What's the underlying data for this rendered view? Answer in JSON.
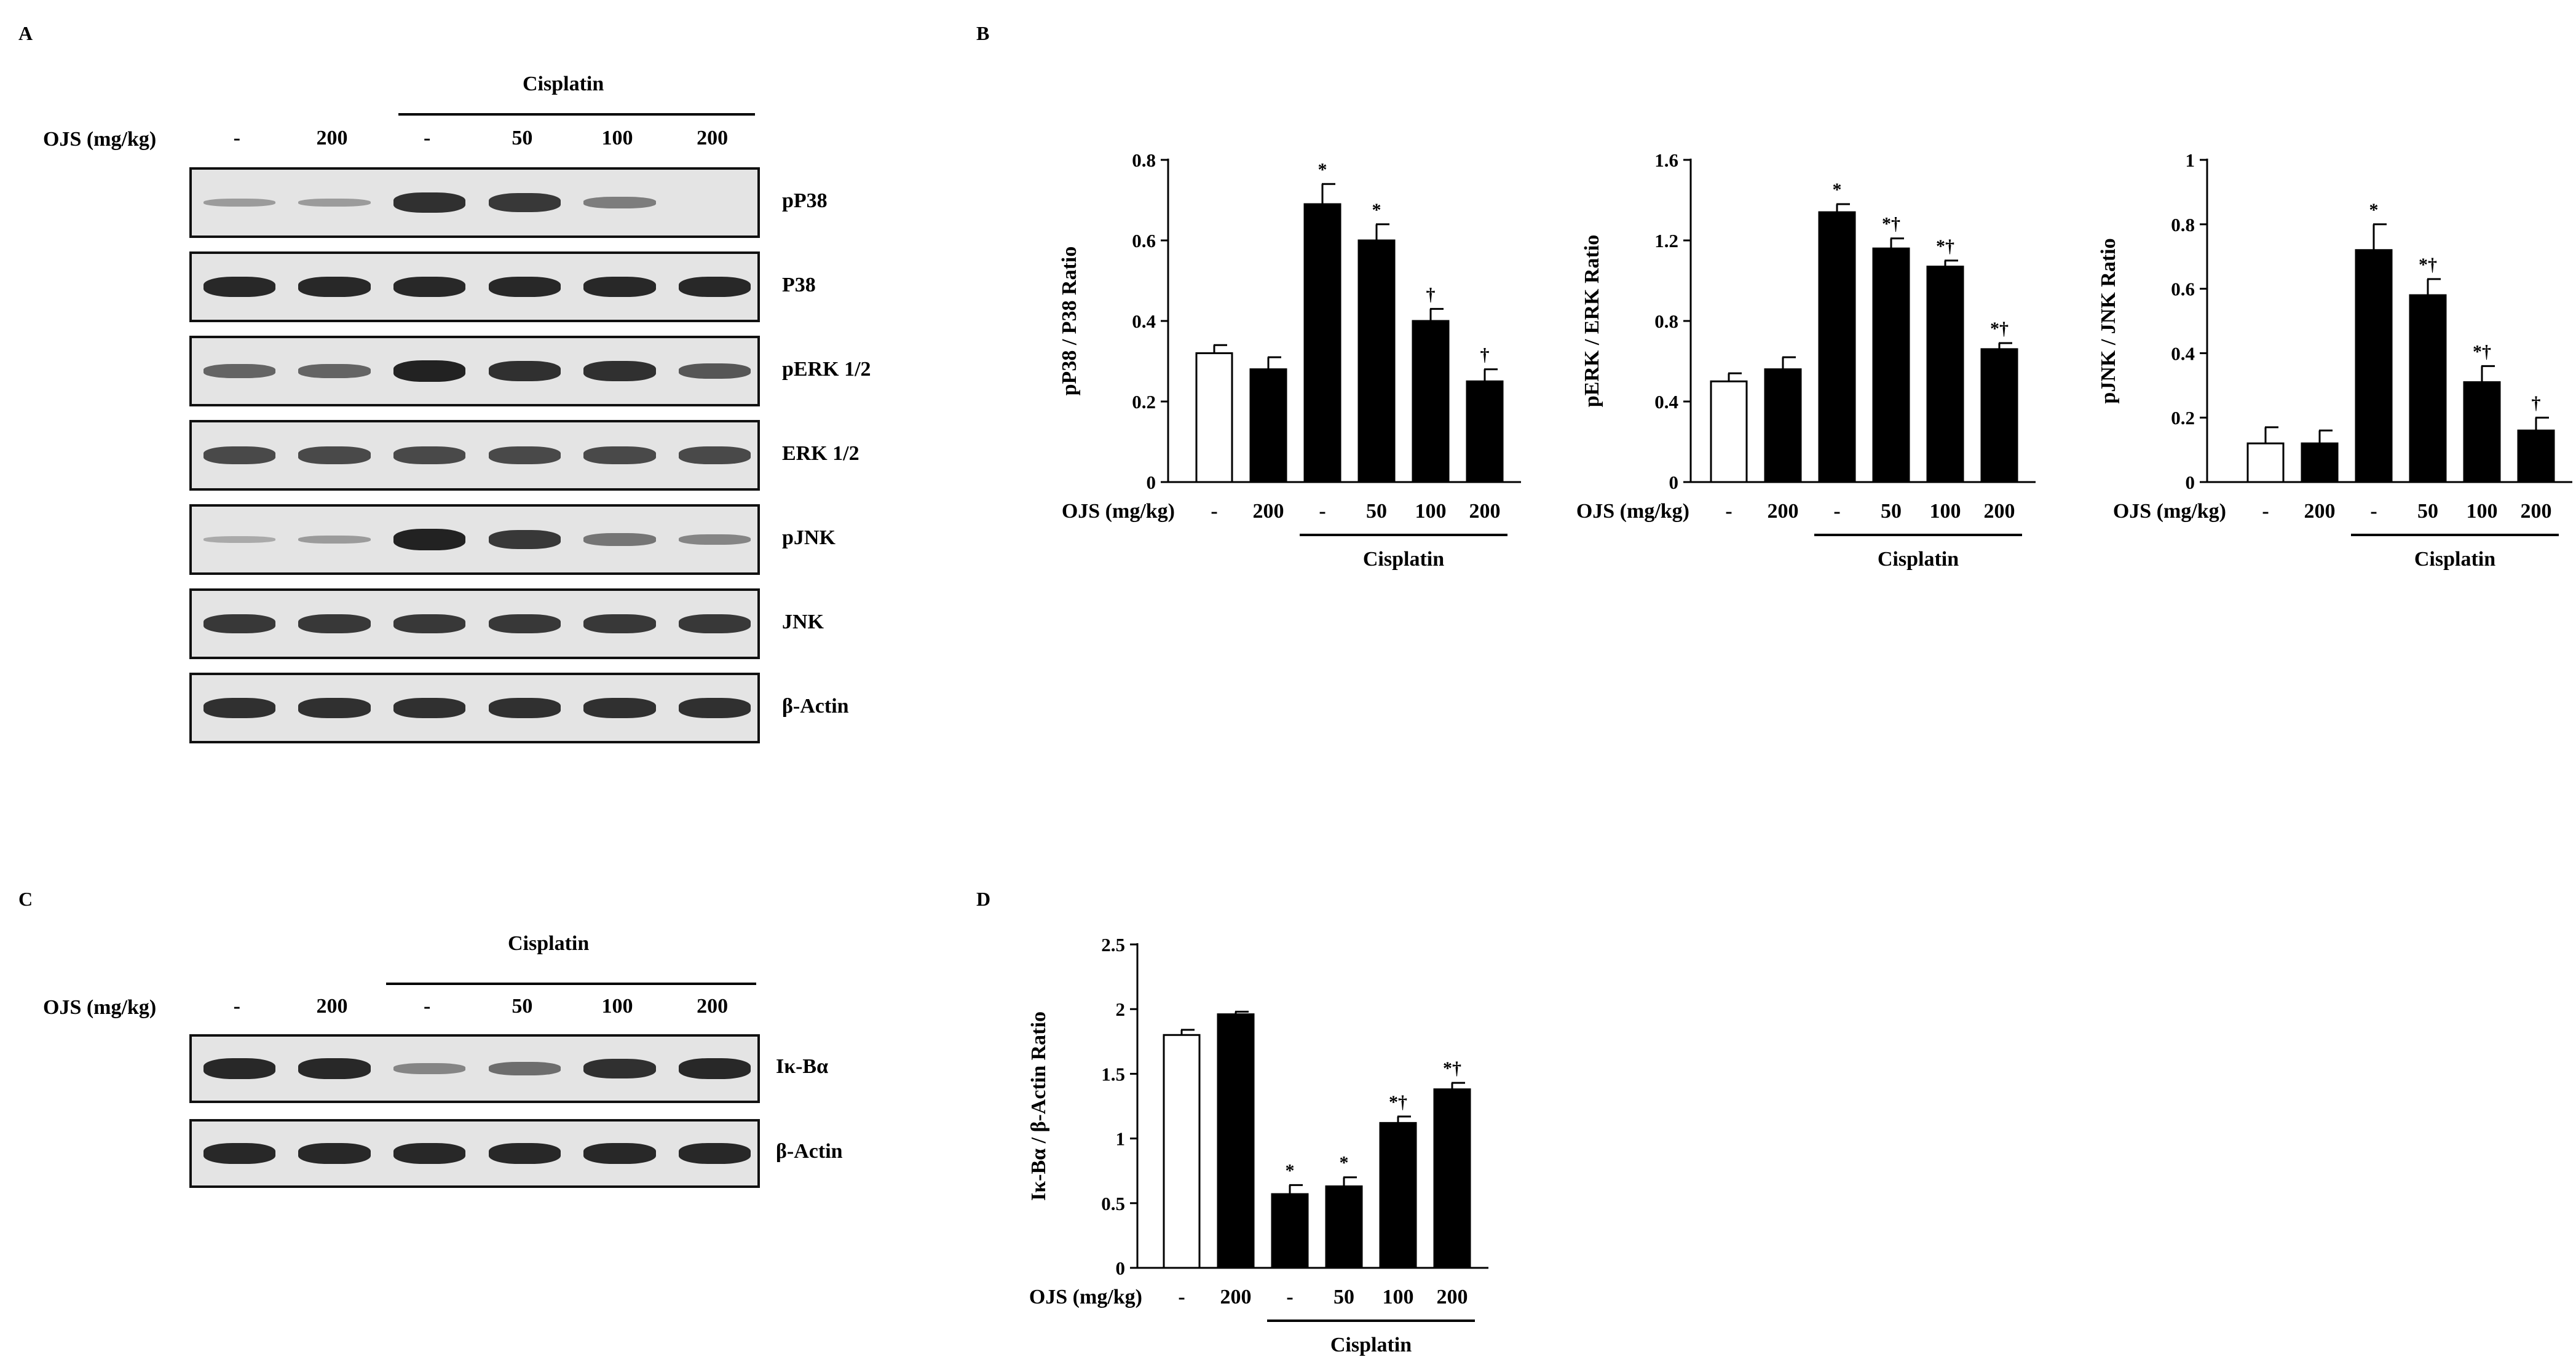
{
  "panels": {
    "a": "A",
    "b": "B",
    "c": "C",
    "d": "D"
  },
  "blot_a": {
    "treatment_label": "Cisplatin",
    "ojs_label": "OJS (mg/kg)",
    "lanes": [
      "-",
      "200",
      "-",
      "50",
      "100",
      "200"
    ],
    "rows": [
      {
        "label": "pP38",
        "intensity": [
          0.15,
          0.15,
          0.85,
          0.8,
          0.35,
          0.0
        ]
      },
      {
        "label": "P38",
        "intensity": [
          0.9,
          0.9,
          0.9,
          0.9,
          0.9,
          0.9
        ]
      },
      {
        "label": "pERK 1/2",
        "intensity": [
          0.5,
          0.5,
          0.95,
          0.85,
          0.85,
          0.6
        ]
      },
      {
        "label": "ERK 1/2",
        "intensity": [
          0.7,
          0.7,
          0.7,
          0.7,
          0.7,
          0.7
        ]
      },
      {
        "label": "pJNK",
        "intensity": [
          0.05,
          0.15,
          0.95,
          0.8,
          0.4,
          0.3
        ]
      },
      {
        "label": "JNK",
        "intensity": [
          0.8,
          0.8,
          0.8,
          0.8,
          0.8,
          0.8
        ]
      },
      {
        "label": "β-Actin",
        "intensity": [
          0.85,
          0.85,
          0.85,
          0.85,
          0.85,
          0.85
        ]
      }
    ]
  },
  "blot_c": {
    "treatment_label": "Cisplatin",
    "ojs_label": "OJS (mg/kg)",
    "lanes": [
      "-",
      "200",
      "-",
      "50",
      "100",
      "200"
    ],
    "rows": [
      {
        "label": "Iκ-Bα",
        "intensity": [
          0.9,
          0.9,
          0.3,
          0.45,
          0.85,
          0.9
        ]
      },
      {
        "label": "β-Actin",
        "intensity": [
          0.9,
          0.9,
          0.9,
          0.9,
          0.9,
          0.9
        ]
      }
    ]
  },
  "chart_data": [
    {
      "type": "bar",
      "ylabel": "pP38 / P38 Ratio",
      "xlabel": "OJS (mg/kg)",
      "group_label": "Cisplatin",
      "categories": [
        "-",
        "200",
        "-",
        "50",
        "100",
        "200"
      ],
      "values": [
        0.32,
        0.28,
        0.69,
        0.6,
        0.4,
        0.25
      ],
      "errors": [
        0.02,
        0.03,
        0.05,
        0.04,
        0.03,
        0.03
      ],
      "annotations": [
        "",
        "",
        "*",
        "*",
        "†",
        "†"
      ],
      "bar_colors": [
        "#ffffff",
        "#000000",
        "#000000",
        "#000000",
        "#000000",
        "#000000"
      ],
      "ylim": [
        0,
        0.8
      ],
      "yticks": [
        "0",
        "0.2",
        "0.4",
        "0.6",
        "0.8"
      ]
    },
    {
      "type": "bar",
      "ylabel": "pERK / ERK Ratio",
      "xlabel": "OJS (mg/kg)",
      "group_label": "Cisplatin",
      "categories": [
        "-",
        "200",
        "-",
        "50",
        "100",
        "200"
      ],
      "values": [
        0.5,
        0.56,
        1.34,
        1.16,
        1.07,
        0.66
      ],
      "errors": [
        0.04,
        0.06,
        0.04,
        0.05,
        0.03,
        0.03
      ],
      "annotations": [
        "",
        "",
        "*",
        "*†",
        "*†",
        "*†"
      ],
      "bar_colors": [
        "#ffffff",
        "#000000",
        "#000000",
        "#000000",
        "#000000",
        "#000000"
      ],
      "ylim": [
        0,
        1.6
      ],
      "yticks": [
        "0",
        "0.4",
        "0.8",
        "1.2",
        "1.6"
      ]
    },
    {
      "type": "bar",
      "ylabel": "pJNK / JNK Ratio",
      "xlabel": "OJS (mg/kg)",
      "group_label": "Cisplatin",
      "categories": [
        "-",
        "200",
        "-",
        "50",
        "100",
        "200"
      ],
      "values": [
        0.12,
        0.12,
        0.72,
        0.58,
        0.31,
        0.16
      ],
      "errors": [
        0.05,
        0.04,
        0.08,
        0.05,
        0.05,
        0.04
      ],
      "annotations": [
        "",
        "",
        "*",
        "*†",
        "*†",
        "†"
      ],
      "bar_colors": [
        "#ffffff",
        "#000000",
        "#000000",
        "#000000",
        "#000000",
        "#000000"
      ],
      "ylim": [
        0,
        1
      ],
      "yticks": [
        "0",
        "0.2",
        "0.4",
        "0.6",
        "0.8",
        "1"
      ]
    },
    {
      "type": "bar",
      "ylabel": "Iκ-Bα / β-Actin Ratio",
      "xlabel": "OJS (mg/kg)",
      "group_label": "Cisplatin",
      "categories": [
        "-",
        "200",
        "-",
        "50",
        "100",
        "200"
      ],
      "values": [
        1.8,
        1.96,
        0.57,
        0.63,
        1.12,
        1.38
      ],
      "errors": [
        0.04,
        0.02,
        0.07,
        0.07,
        0.05,
        0.05
      ],
      "annotations": [
        "",
        "",
        "*",
        "*",
        "*†",
        "*†"
      ],
      "bar_colors": [
        "#ffffff",
        "#000000",
        "#000000",
        "#000000",
        "#000000",
        "#000000"
      ],
      "ylim": [
        0,
        2.5
      ],
      "yticks": [
        "0",
        "0.5",
        "1",
        "1.5",
        "2",
        "2.5"
      ]
    }
  ]
}
